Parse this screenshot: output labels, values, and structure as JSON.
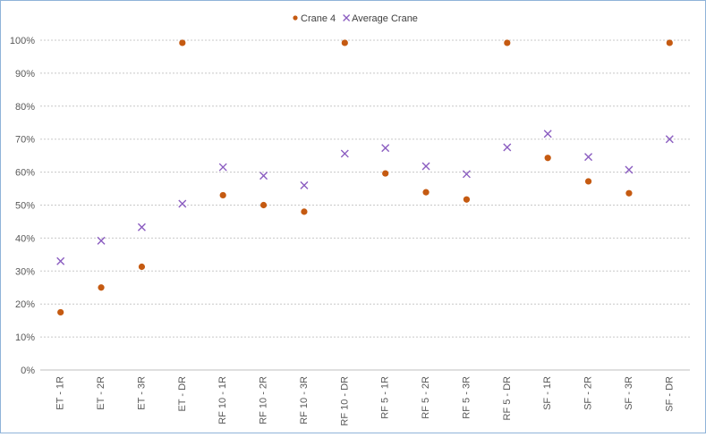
{
  "chart_data": {
    "type": "scatter",
    "title": "",
    "xlabel": "",
    "ylabel": "",
    "ylim": [
      0,
      100
    ],
    "y_tick_labels": [
      "0%",
      "10%",
      "20%",
      "30%",
      "40%",
      "50%",
      "60%",
      "70%",
      "80%",
      "90%",
      "100%"
    ],
    "grid": "horizontal dotted",
    "legend_position": "top-center",
    "categories": [
      "ET - 1R",
      "ET - 2R",
      "ET - 3R",
      "ET - DR",
      "RF 10 - 1R",
      "RF 10 - 2R",
      "RF 10 - 3R",
      "RF 10 - DR",
      "RF 5 - 1R",
      "RF 5 - 2R",
      "RF 5 - 3R",
      "RF 5 - DR",
      "SF - 1R",
      "SF - 2R",
      "SF - 3R",
      "SF - DR"
    ],
    "series": [
      {
        "name": "Crane 4",
        "marker": "dot",
        "color": "#c55a11",
        "values": [
          17.5,
          25,
          31.3,
          99.2,
          53,
          50,
          48,
          99.2,
          59.6,
          53.9,
          51.7,
          99.2,
          64.3,
          57.2,
          53.6,
          99.2
        ]
      },
      {
        "name": "Average Crane",
        "marker": "x",
        "color": "#8a5cc0",
        "values": [
          33,
          39.2,
          43.3,
          50.4,
          61.5,
          58.9,
          56,
          65.6,
          67.3,
          61.8,
          59.4,
          67.5,
          71.6,
          64.6,
          60.7,
          70
        ]
      }
    ]
  }
}
